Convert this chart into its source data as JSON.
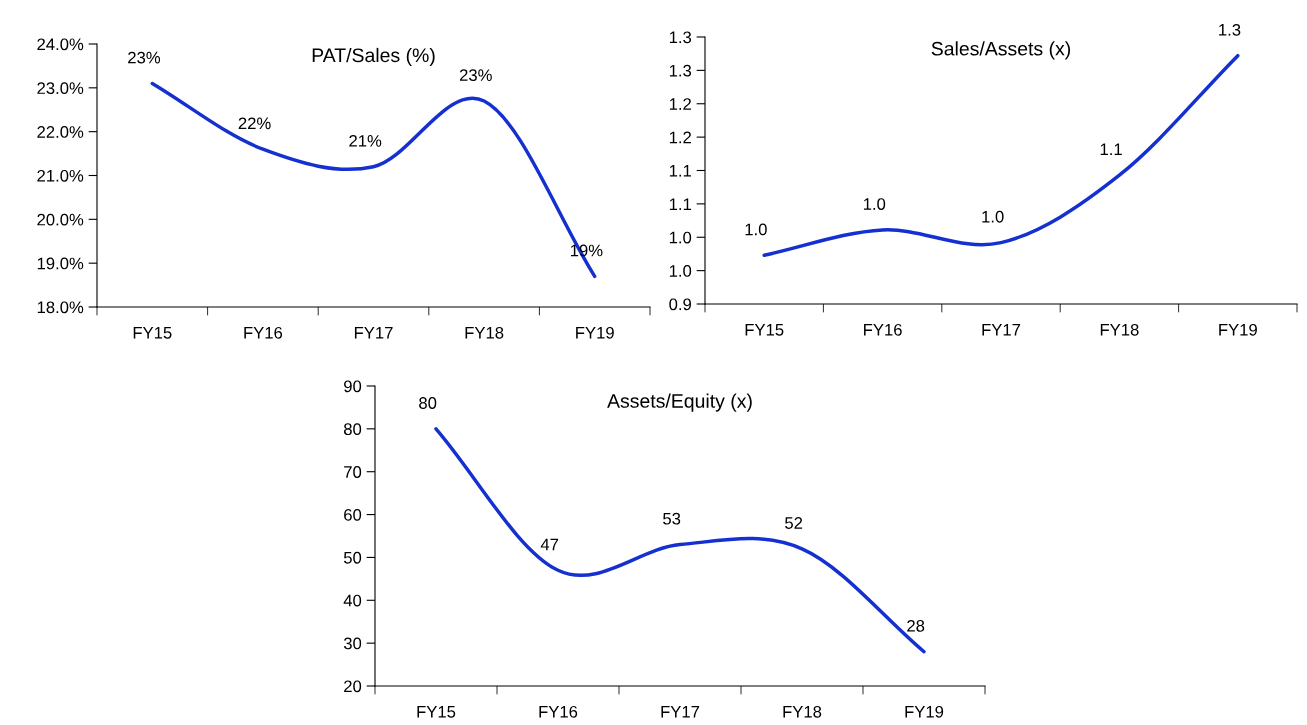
{
  "chart_data": [
    {
      "type": "line",
      "title": "PAT/Sales (%)",
      "categories": [
        "FY15",
        "FY16",
        "FY17",
        "FY18",
        "FY19"
      ],
      "series": [
        {
          "color": "#1530d0",
          "values": [
            23.1,
            21.6,
            21.2,
            22.7,
            18.7
          ],
          "value_labels": [
            "23%",
            "22%",
            "21%",
            "23%",
            "19%"
          ]
        }
      ],
      "ylim": [
        18,
        24
      ],
      "yticks": [
        {
          "value": 18,
          "label": "18.0%"
        },
        {
          "value": 19,
          "label": "19.0%"
        },
        {
          "value": 20,
          "label": "20.0%"
        },
        {
          "value": 21,
          "label": "21.0%"
        },
        {
          "value": 22,
          "label": "22.0%"
        },
        {
          "value": 23,
          "label": "23.0%"
        },
        {
          "value": 24,
          "label": "24.0%"
        }
      ],
      "grid": false,
      "marker": "none",
      "line_style": "solid"
    },
    {
      "type": "line",
      "title": "Sales/Assets (x)",
      "categories": [
        "FY15",
        "FY16",
        "FY17",
        "FY18",
        "FY19"
      ],
      "series": [
        {
          "color": "#1530d0",
          "values": [
            0.973,
            1.011,
            0.992,
            1.093,
            1.272
          ],
          "value_labels": [
            "1.0",
            "1.0",
            "1.0",
            "1.1",
            "1.3"
          ]
        }
      ],
      "ylim": [
        0.9,
        1.3
      ],
      "yticks": [
        {
          "value": 0.9,
          "label": "0.9"
        },
        {
          "value": 0.95,
          "label": "1.0"
        },
        {
          "value": 1.0,
          "label": "1.0"
        },
        {
          "value": 1.05,
          "label": "1.1"
        },
        {
          "value": 1.1,
          "label": "1.1"
        },
        {
          "value": 1.15,
          "label": "1.2"
        },
        {
          "value": 1.2,
          "label": "1.2"
        },
        {
          "value": 1.25,
          "label": "1.3"
        },
        {
          "value": 1.3,
          "label": "1.3"
        }
      ],
      "grid": false,
      "marker": "none",
      "line_style": "solid"
    },
    {
      "type": "line",
      "title": "Assets/Equity (x)",
      "categories": [
        "FY15",
        "FY16",
        "FY17",
        "FY18",
        "FY19"
      ],
      "series": [
        {
          "color": "#1530d0",
          "values": [
            80,
            47,
            53,
            52,
            28
          ],
          "value_labels": [
            "80",
            "47",
            "53",
            "52",
            "28"
          ]
        }
      ],
      "ylim": [
        20,
        90
      ],
      "yticks": [
        20,
        30,
        40,
        50,
        60,
        70,
        80,
        90
      ],
      "grid": false,
      "marker": "none",
      "line_style": "solid"
    }
  ]
}
